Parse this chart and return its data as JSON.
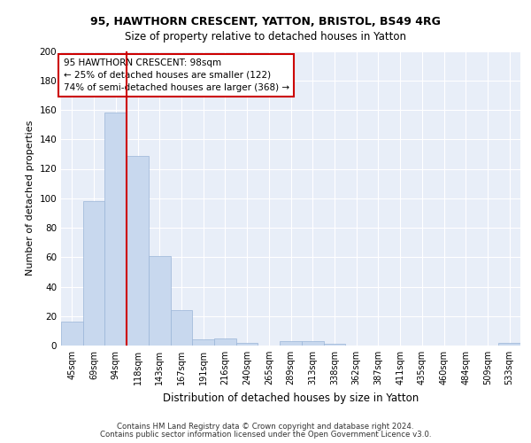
{
  "title1": "95, HAWTHORN CRESCENT, YATTON, BRISTOL, BS49 4RG",
  "title2": "Size of property relative to detached houses in Yatton",
  "xlabel": "Distribution of detached houses by size in Yatton",
  "ylabel": "Number of detached properties",
  "categories": [
    "45sqm",
    "69sqm",
    "94sqm",
    "118sqm",
    "143sqm",
    "167sqm",
    "191sqm",
    "216sqm",
    "240sqm",
    "265sqm",
    "289sqm",
    "313sqm",
    "338sqm",
    "362sqm",
    "387sqm",
    "411sqm",
    "435sqm",
    "460sqm",
    "484sqm",
    "509sqm",
    "533sqm"
  ],
  "values": [
    16,
    98,
    158,
    129,
    61,
    24,
    4,
    5,
    2,
    0,
    3,
    3,
    1,
    0,
    0,
    0,
    0,
    0,
    0,
    0,
    2
  ],
  "bar_color": "#c8d8ee",
  "bar_edge_color": "#9ab5d8",
  "vline_color": "#cc0000",
  "annotation_text": "95 HAWTHORN CRESCENT: 98sqm\n← 25% of detached houses are smaller (122)\n74% of semi-detached houses are larger (368) →",
  "annotation_box_color": "white",
  "annotation_box_edge": "#cc0000",
  "ylim": [
    0,
    200
  ],
  "yticks": [
    0,
    20,
    40,
    60,
    80,
    100,
    120,
    140,
    160,
    180,
    200
  ],
  "bg_color": "#e8eef8",
  "grid_color": "#ffffff",
  "footer1": "Contains HM Land Registry data © Crown copyright and database right 2024.",
  "footer2": "Contains public sector information licensed under the Open Government Licence v3.0."
}
